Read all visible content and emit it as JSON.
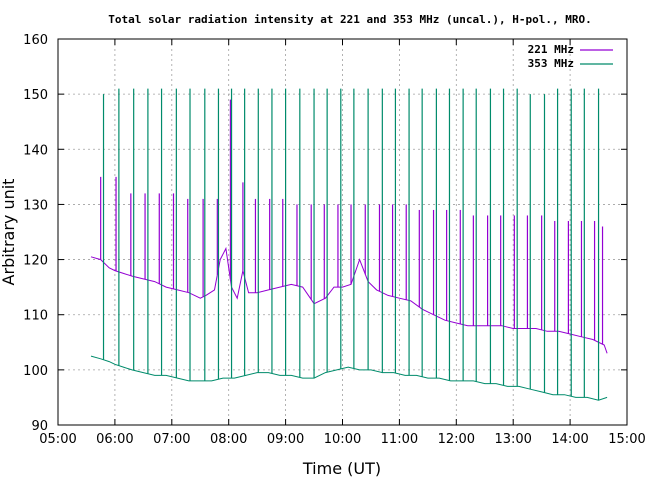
{
  "chart_data": {
    "type": "line",
    "title": "Total solar radiation intensity at 221 and 353 MHz (uncal.), H-pol., MRO.",
    "xlabel": "Time (UT)",
    "ylabel": "Arbitrary unit",
    "xlim": [
      5.0,
      15.0
    ],
    "ylim": [
      90,
      160
    ],
    "x_ticks": [
      "05:00",
      "06:00",
      "07:00",
      "08:00",
      "09:00",
      "10:00",
      "11:00",
      "12:00",
      "13:00",
      "14:00",
      "15:00"
    ],
    "y_ticks": [
      90,
      100,
      110,
      120,
      130,
      140,
      150,
      160
    ],
    "grid": true,
    "legend_position": "top-right",
    "series": [
      {
        "name": "221 MHz",
        "color": "#9400d3",
        "x": [
          5.58,
          5.75,
          5.9,
          6.0,
          6.15,
          6.3,
          6.5,
          6.7,
          6.9,
          7.1,
          7.3,
          7.5,
          7.6,
          7.75,
          7.85,
          7.95,
          8.05,
          8.15,
          8.25,
          8.35,
          8.5,
          8.7,
          8.9,
          9.1,
          9.3,
          9.5,
          9.7,
          9.85,
          10.0,
          10.15,
          10.3,
          10.45,
          10.6,
          10.8,
          11.0,
          11.2,
          11.4,
          11.6,
          11.8,
          12.0,
          12.2,
          12.4,
          12.6,
          12.8,
          13.0,
          13.2,
          13.4,
          13.6,
          13.8,
          14.0,
          14.2,
          14.4,
          14.6,
          14.65
        ],
        "y": [
          120.5,
          120,
          118.5,
          118,
          117.5,
          117,
          116.5,
          116,
          115,
          114.5,
          114,
          113,
          113.5,
          114.5,
          120,
          122,
          115,
          113,
          118,
          114,
          114,
          114.5,
          115,
          115.5,
          115,
          112,
          113,
          115,
          115,
          115.5,
          120,
          116,
          114.5,
          113.5,
          113,
          112.5,
          111,
          110,
          109,
          108.5,
          108,
          108,
          108,
          108,
          107.5,
          107.5,
          107.5,
          107,
          107,
          106.5,
          106,
          105.5,
          104.5,
          103
        ],
        "spikes": [
          {
            "x": 5.75,
            "y": 135
          },
          {
            "x": 6.02,
            "y": 135
          },
          {
            "x": 6.28,
            "y": 132
          },
          {
            "x": 6.53,
            "y": 132
          },
          {
            "x": 6.78,
            "y": 132
          },
          {
            "x": 7.03,
            "y": 132
          },
          {
            "x": 7.28,
            "y": 131
          },
          {
            "x": 7.55,
            "y": 131
          },
          {
            "x": 7.8,
            "y": 131
          },
          {
            "x": 8.03,
            "y": 149
          },
          {
            "x": 8.25,
            "y": 134
          },
          {
            "x": 8.47,
            "y": 131
          },
          {
            "x": 8.72,
            "y": 131
          },
          {
            "x": 8.95,
            "y": 131
          },
          {
            "x": 9.2,
            "y": 130
          },
          {
            "x": 9.45,
            "y": 130
          },
          {
            "x": 9.68,
            "y": 130
          },
          {
            "x": 9.92,
            "y": 130
          },
          {
            "x": 10.15,
            "y": 130
          },
          {
            "x": 10.4,
            "y": 130
          },
          {
            "x": 10.65,
            "y": 130
          },
          {
            "x": 10.88,
            "y": 130
          },
          {
            "x": 11.12,
            "y": 130
          },
          {
            "x": 11.35,
            "y": 129
          },
          {
            "x": 11.6,
            "y": 129
          },
          {
            "x": 11.83,
            "y": 129
          },
          {
            "x": 12.07,
            "y": 129
          },
          {
            "x": 12.3,
            "y": 128
          },
          {
            "x": 12.55,
            "y": 128
          },
          {
            "x": 12.78,
            "y": 128
          },
          {
            "x": 13.02,
            "y": 128
          },
          {
            "x": 13.25,
            "y": 128
          },
          {
            "x": 13.5,
            "y": 128
          },
          {
            "x": 13.73,
            "y": 127
          },
          {
            "x": 13.97,
            "y": 127
          },
          {
            "x": 14.2,
            "y": 127
          },
          {
            "x": 14.43,
            "y": 127
          },
          {
            "x": 14.57,
            "y": 126
          }
        ]
      },
      {
        "name": "353 MHz",
        "color": "#008b6b",
        "x": [
          5.58,
          5.75,
          5.9,
          6.0,
          6.15,
          6.3,
          6.5,
          6.7,
          6.9,
          7.1,
          7.3,
          7.5,
          7.7,
          7.9,
          8.1,
          8.3,
          8.5,
          8.7,
          8.9,
          9.1,
          9.3,
          9.5,
          9.7,
          9.9,
          10.1,
          10.3,
          10.5,
          10.7,
          10.9,
          11.1,
          11.3,
          11.5,
          11.7,
          11.9,
          12.1,
          12.3,
          12.5,
          12.7,
          12.9,
          13.1,
          13.3,
          13.5,
          13.7,
          13.9,
          14.1,
          14.3,
          14.5,
          14.65
        ],
        "y": [
          102.5,
          102,
          101.5,
          101,
          100.5,
          100,
          99.5,
          99,
          99,
          98.5,
          98,
          98,
          98,
          98.5,
          98.5,
          99,
          99.5,
          99.5,
          99,
          99,
          98.5,
          98.5,
          99.5,
          100,
          100.5,
          100,
          100,
          99.5,
          99.5,
          99,
          99,
          98.5,
          98.5,
          98,
          98,
          98,
          97.5,
          97.5,
          97,
          97,
          96.5,
          96,
          95.5,
          95.5,
          95,
          95,
          94.5,
          95
        ],
        "spikes": [
          {
            "x": 5.8,
            "y": 150
          },
          {
            "x": 6.07,
            "y": 151
          },
          {
            "x": 6.33,
            "y": 151
          },
          {
            "x": 6.58,
            "y": 151
          },
          {
            "x": 6.82,
            "y": 151
          },
          {
            "x": 7.08,
            "y": 151
          },
          {
            "x": 7.32,
            "y": 151
          },
          {
            "x": 7.58,
            "y": 151
          },
          {
            "x": 7.82,
            "y": 151
          },
          {
            "x": 8.05,
            "y": 151
          },
          {
            "x": 8.28,
            "y": 151
          },
          {
            "x": 8.52,
            "y": 151
          },
          {
            "x": 8.76,
            "y": 151
          },
          {
            "x": 9.0,
            "y": 151
          },
          {
            "x": 9.25,
            "y": 151
          },
          {
            "x": 9.5,
            "y": 151
          },
          {
            "x": 9.73,
            "y": 151
          },
          {
            "x": 9.97,
            "y": 151
          },
          {
            "x": 10.2,
            "y": 151
          },
          {
            "x": 10.45,
            "y": 151
          },
          {
            "x": 10.7,
            "y": 151
          },
          {
            "x": 10.93,
            "y": 151
          },
          {
            "x": 11.17,
            "y": 151
          },
          {
            "x": 11.4,
            "y": 151
          },
          {
            "x": 11.65,
            "y": 151
          },
          {
            "x": 11.88,
            "y": 151
          },
          {
            "x": 12.12,
            "y": 151
          },
          {
            "x": 12.35,
            "y": 151
          },
          {
            "x": 12.6,
            "y": 151
          },
          {
            "x": 12.83,
            "y": 151
          },
          {
            "x": 13.07,
            "y": 151
          },
          {
            "x": 13.3,
            "y": 150
          },
          {
            "x": 13.55,
            "y": 150
          },
          {
            "x": 13.78,
            "y": 151
          },
          {
            "x": 14.02,
            "y": 151
          },
          {
            "x": 14.25,
            "y": 151
          },
          {
            "x": 14.5,
            "y": 151
          }
        ]
      }
    ]
  }
}
